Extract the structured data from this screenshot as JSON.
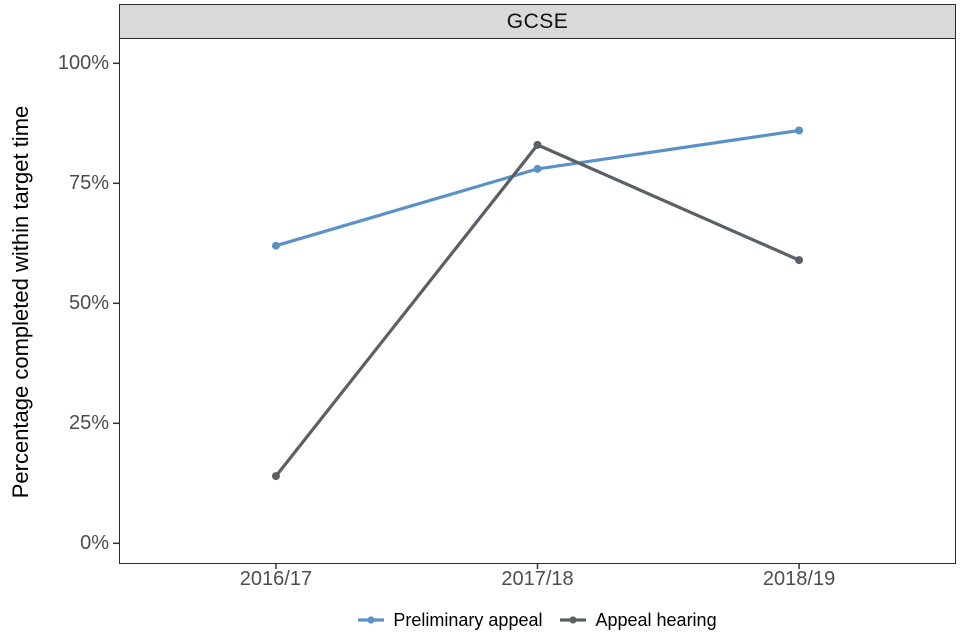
{
  "chart_data": {
    "type": "line",
    "title": "GCSE",
    "xlabel": "",
    "ylabel": "Percentage completed within target time",
    "categories": [
      "2016/17",
      "2017/18",
      "2018/19"
    ],
    "series": [
      {
        "name": "Preliminary appeal",
        "values": [
          62,
          78,
          86
        ],
        "color": "#5b92c6"
      },
      {
        "name": "Appeal hearing",
        "values": [
          14,
          83,
          59
        ],
        "color": "#5a6066"
      }
    ],
    "y_ticks": [
      {
        "value": 0,
        "label": "0%"
      },
      {
        "value": 25,
        "label": "25%"
      },
      {
        "value": 50,
        "label": "50%"
      },
      {
        "value": 75,
        "label": "75%"
      },
      {
        "value": 100,
        "label": "100%"
      }
    ],
    "ylim": [
      0,
      100
    ],
    "grid": false,
    "legend_position": "bottom",
    "style": {
      "strip_fill": "#d9d9d9",
      "panel_border": "#2b2b2b",
      "axis_text_color": "#4d4d4d",
      "tick_color": "#333333",
      "title_color": "#111111",
      "background": "#ffffff"
    }
  }
}
